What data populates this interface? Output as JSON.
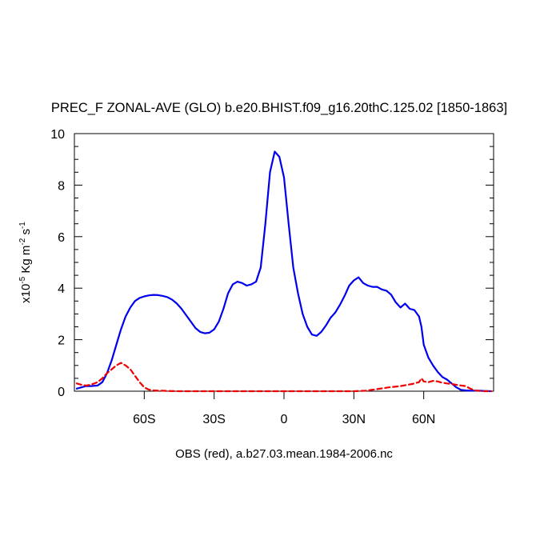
{
  "chart_data": {
    "type": "line",
    "title": "PREC_F ZONAL-AVE (GLO) b.e20.BHIST.f09_g16.20thC.125.02 [1850-1863]",
    "subtitle": "OBS (red), a.b27.03.mean.1984-2006.nc",
    "ylabel": {
      "prefix": "x10",
      "exp1": "-5",
      "mid": " Kg m",
      "exp2": "-2",
      "mid2": " s",
      "exp3": "-1"
    },
    "xlim": [
      -90,
      90
    ],
    "ylim": [
      0,
      10
    ],
    "x_ticks": [
      {
        "value": -60,
        "label": "60S"
      },
      {
        "value": -30,
        "label": "30S"
      },
      {
        "value": 0,
        "label": "0"
      },
      {
        "value": 30,
        "label": "30N"
      },
      {
        "value": 60,
        "label": "60N"
      }
    ],
    "y_ticks": [
      {
        "value": 0,
        "label": "0"
      },
      {
        "value": 2,
        "label": "2"
      },
      {
        "value": 4,
        "label": "4"
      },
      {
        "value": 6,
        "label": "6"
      },
      {
        "value": 8,
        "label": "8"
      },
      {
        "value": 10,
        "label": "10"
      }
    ],
    "series": [
      {
        "color": "#0000ee",
        "style": "solid",
        "x": [
          -89,
          -87,
          -85,
          -83,
          -80,
          -78,
          -76,
          -74,
          -72,
          -70,
          -68,
          -66,
          -64,
          -62,
          -60,
          -58,
          -56,
          -54,
          -52,
          -50,
          -48,
          -46,
          -44,
          -42,
          -40,
          -38,
          -36,
          -34,
          -32,
          -30,
          -28,
          -26,
          -24,
          -22,
          -20,
          -18,
          -16,
          -14,
          -12,
          -10,
          -8,
          -6,
          -4,
          -2,
          0,
          2,
          4,
          6,
          7,
          8,
          10,
          12,
          14,
          16,
          18,
          20,
          22,
          24,
          26,
          28,
          30,
          32,
          34,
          36,
          38,
          40,
          42,
          44,
          46,
          48,
          50,
          52,
          54,
          56,
          58,
          59,
          60,
          62,
          64,
          66,
          68,
          70,
          72,
          74,
          76,
          78,
          80,
          82,
          84,
          86,
          89
        ],
        "y": [
          0.1,
          0.15,
          0.2,
          0.2,
          0.22,
          0.35,
          0.7,
          1.2,
          1.8,
          2.4,
          2.9,
          3.25,
          3.5,
          3.62,
          3.68,
          3.72,
          3.74,
          3.73,
          3.7,
          3.65,
          3.55,
          3.4,
          3.2,
          2.95,
          2.7,
          2.45,
          2.3,
          2.25,
          2.27,
          2.4,
          2.7,
          3.2,
          3.8,
          4.15,
          4.25,
          4.2,
          4.1,
          4.15,
          4.25,
          4.8,
          6.5,
          8.5,
          9.3,
          9.1,
          8.3,
          6.5,
          4.8,
          3.8,
          3.4,
          3.0,
          2.5,
          2.2,
          2.15,
          2.3,
          2.55,
          2.85,
          3.05,
          3.35,
          3.7,
          4.1,
          4.3,
          4.42,
          4.2,
          4.1,
          4.05,
          4.05,
          3.95,
          3.9,
          3.75,
          3.45,
          3.25,
          3.4,
          3.2,
          3.15,
          2.9,
          2.5,
          1.8,
          1.3,
          1.0,
          0.75,
          0.55,
          0.45,
          0.3,
          0.15,
          0.05,
          0.03,
          0.02,
          0.02,
          0.02,
          0.01,
          0.0
        ]
      },
      {
        "color": "#ee0000",
        "style": "dashed",
        "x": [
          -89,
          -87,
          -85,
          -83,
          -80,
          -78,
          -76,
          -74,
          -72,
          -70,
          -68,
          -66,
          -64,
          -62,
          -60,
          -58,
          -56,
          -54,
          -52,
          -50,
          -45,
          -30,
          -10,
          10,
          30,
          35,
          40,
          45,
          50,
          55,
          58,
          59,
          60,
          62,
          64,
          66,
          68,
          70,
          72,
          74,
          76,
          78,
          80,
          82,
          84,
          86,
          89
        ],
        "y": [
          0.3,
          0.25,
          0.22,
          0.25,
          0.35,
          0.5,
          0.7,
          0.85,
          1.0,
          1.1,
          1.0,
          0.85,
          0.6,
          0.35,
          0.15,
          0.06,
          0.03,
          0.02,
          0.02,
          0.01,
          0.0,
          0.0,
          0.0,
          0.0,
          0.0,
          0.02,
          0.08,
          0.15,
          0.2,
          0.28,
          0.35,
          0.5,
          0.38,
          0.35,
          0.4,
          0.38,
          0.33,
          0.3,
          0.28,
          0.25,
          0.22,
          0.2,
          0.1,
          0.03,
          0.01,
          0.0,
          0.0
        ]
      }
    ]
  }
}
